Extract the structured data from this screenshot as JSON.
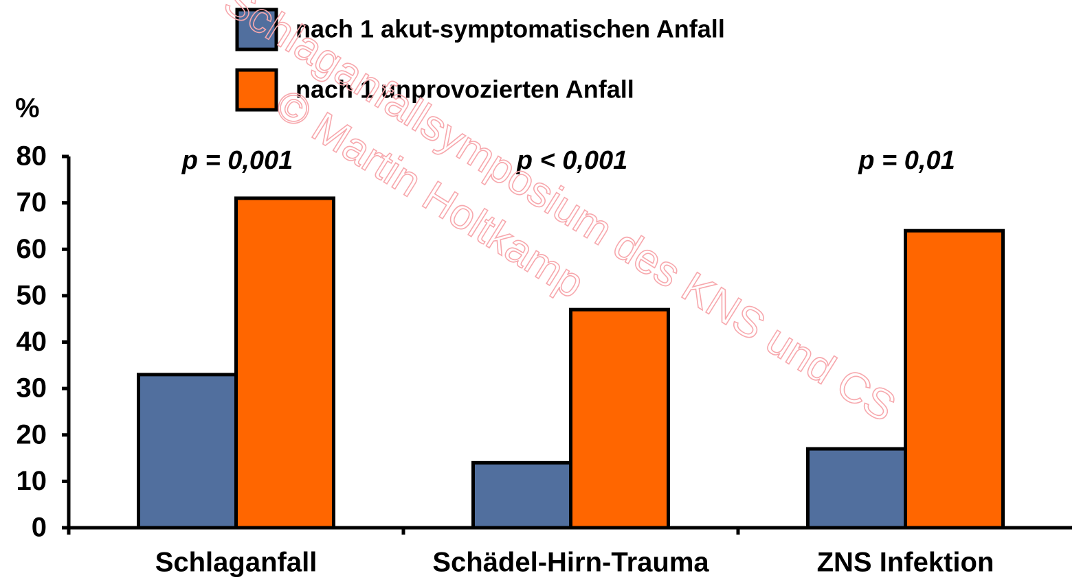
{
  "chart_data": {
    "type": "bar",
    "y_label": "%",
    "categories": [
      "Schlaganfall",
      "Schädel-Hirn-Trauma",
      "ZNS Infektion"
    ],
    "series": [
      {
        "name": "nach 1 akut-symptomatischen Anfall",
        "color": "#516f9e",
        "values": [
          33,
          14,
          17
        ]
      },
      {
        "name": "nach 1 unprovozierten Anfall",
        "color": "#ff6600",
        "values": [
          71,
          47,
          64
        ]
      }
    ],
    "annotations": [
      "p = 0,001",
      "p < 0,001",
      "p = 0,01"
    ],
    "watermarks": [
      "Schlaganfallsymposium des KNS und CS",
      "© Martin Holtkamp"
    ],
    "ylim": [
      0,
      80
    ],
    "yticks": [
      0,
      10,
      20,
      30,
      40,
      50,
      60,
      70,
      80
    ],
    "grid": false
  }
}
